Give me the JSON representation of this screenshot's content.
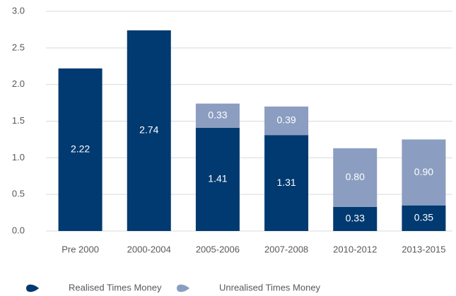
{
  "chart_data": {
    "type": "stacked_bar",
    "categories": [
      "Pre 2000",
      "2000-2004",
      "2005-2006",
      "2007-2008",
      "2010-2012",
      "2013-2015"
    ],
    "series": [
      {
        "name": "Realised Times Money",
        "color": "#003a70",
        "values": [
          2.22,
          2.74,
          1.41,
          1.31,
          0.33,
          0.35
        ]
      },
      {
        "name": "Unrealised Times Money",
        "color": "#8b9dc0",
        "values": [
          null,
          null,
          0.33,
          0.39,
          0.8,
          0.9
        ],
        "value_labels": [
          null,
          null,
          "0.33",
          "0.39",
          "0.80",
          "0.90"
        ]
      }
    ],
    "ylim": [
      0,
      3
    ],
    "yticks": [
      {
        "value": 0,
        "label": "0.0"
      },
      {
        "value": 0.5,
        "label": "0.5"
      },
      {
        "value": 1,
        "label": "1.0"
      },
      {
        "value": 1.5,
        "label": "1.5"
      },
      {
        "value": 2,
        "label": "2.0"
      },
      {
        "value": 2.5,
        "label": "2.5"
      },
      {
        "value": 3,
        "label": "3.0"
      }
    ],
    "grid": true,
    "legend": "bottom"
  }
}
